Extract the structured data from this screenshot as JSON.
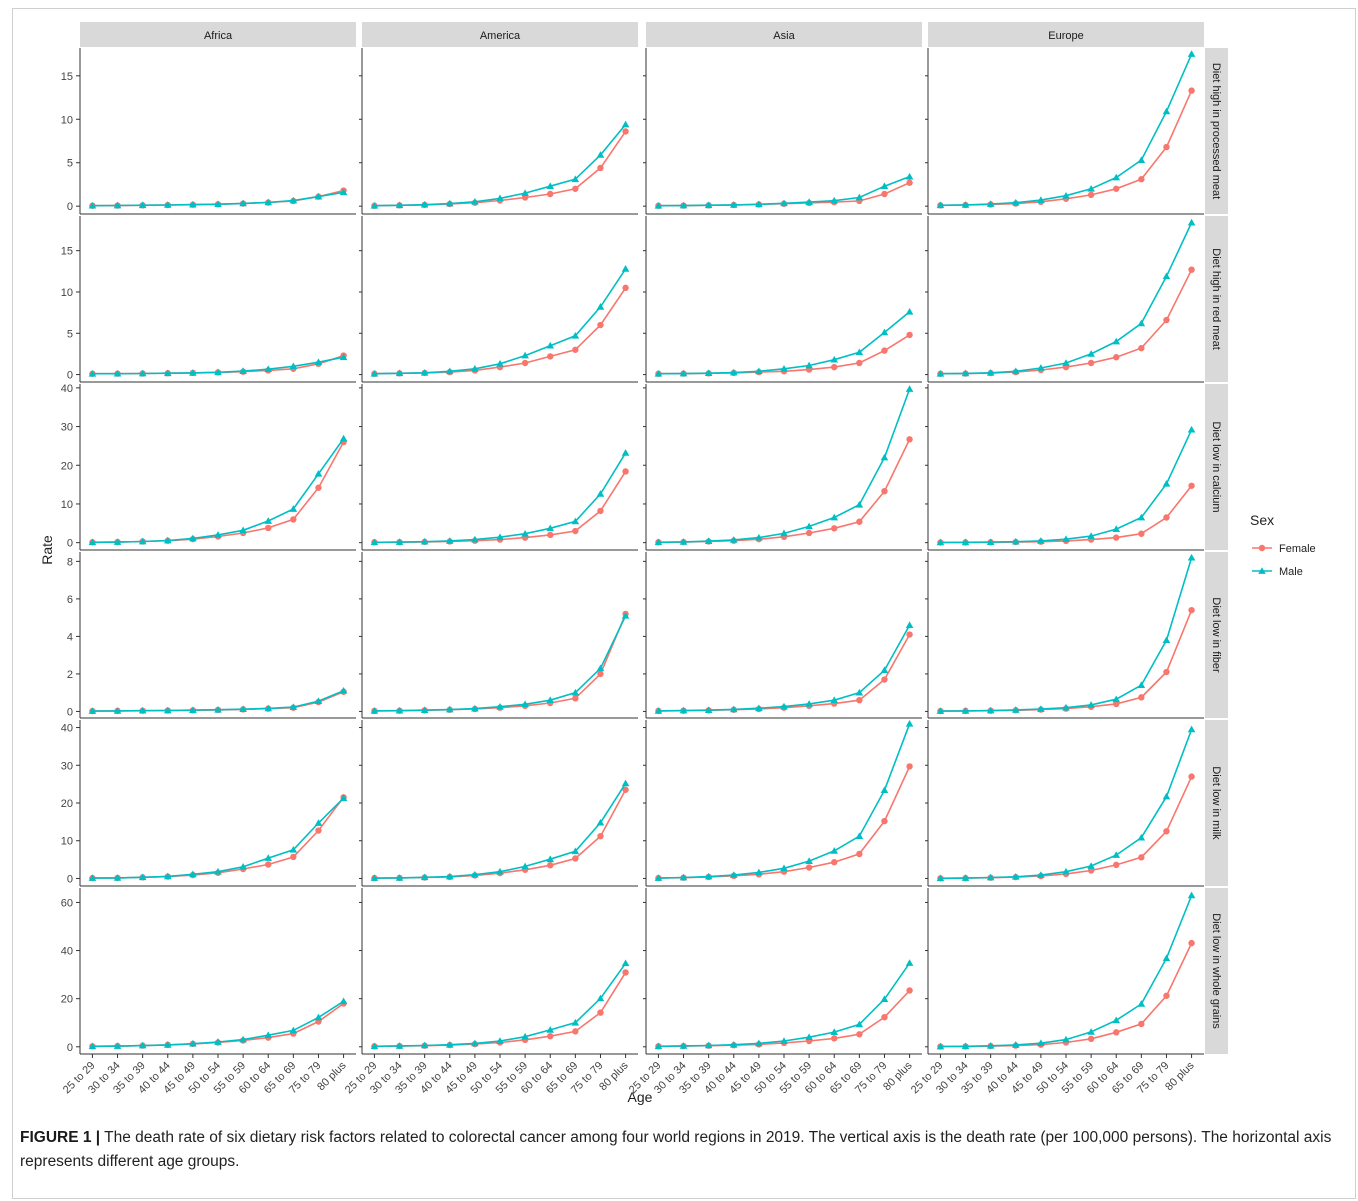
{
  "caption": {
    "label": "FIGURE 1 |",
    "text": " The death rate of six dietary risk factors related to colorectal cancer among four world regions in 2019. The vertical axis is the death rate (per 100,000 persons). The horizontal axis represents different age groups."
  },
  "chart_data": {
    "type": "line",
    "xlabel": "Age",
    "ylabel": "Rate",
    "categories": [
      "25 to 29",
      "30 to 34",
      "35 to 39",
      "40 to 44",
      "45 to 49",
      "50 to 54",
      "55 to 59",
      "60 to 64",
      "65 to 69",
      "75 to 79",
      "80 plus"
    ],
    "legend": {
      "title": "Sex",
      "position": "right",
      "entries": [
        {
          "name": "Female",
          "color": "#F8766D",
          "marker": "circle"
        },
        {
          "name": "Male",
          "color": "#00BFC4",
          "marker": "triangle"
        }
      ]
    },
    "grid": false,
    "columns": [
      "Africa",
      "America",
      "Asia",
      "Europe"
    ],
    "rows": [
      {
        "name": "Diet high in processed meat",
        "ylim": [
          -0.9,
          18.2
        ],
        "yticks": [
          0,
          5,
          10,
          15
        ],
        "panels": {
          "Africa": {
            "Female": [
              0.05,
              0.07,
              0.1,
              0.13,
              0.17,
              0.22,
              0.3,
              0.42,
              0.6,
              1.1,
              1.8
            ],
            "Male": [
              0.06,
              0.08,
              0.11,
              0.14,
              0.18,
              0.23,
              0.32,
              0.44,
              0.65,
              1.1,
              1.6
            ]
          },
          "America": {
            "Female": [
              0.05,
              0.1,
              0.15,
              0.25,
              0.4,
              0.65,
              1.0,
              1.4,
              2.0,
              4.4,
              8.6
            ],
            "Male": [
              0.05,
              0.1,
              0.17,
              0.3,
              0.5,
              0.9,
              1.5,
              2.3,
              3.1,
              5.9,
              9.4
            ]
          },
          "Asia": {
            "Female": [
              0.05,
              0.07,
              0.1,
              0.14,
              0.2,
              0.28,
              0.37,
              0.47,
              0.6,
              1.4,
              2.7
            ],
            "Male": [
              0.05,
              0.07,
              0.11,
              0.15,
              0.22,
              0.33,
              0.47,
              0.63,
              1.0,
              2.3,
              3.4
            ]
          },
          "Europe": {
            "Female": [
              0.1,
              0.13,
              0.2,
              0.3,
              0.5,
              0.85,
              1.3,
              2.0,
              3.1,
              6.8,
              13.3
            ],
            "Male": [
              0.1,
              0.15,
              0.25,
              0.4,
              0.7,
              1.2,
              2.0,
              3.3,
              5.3,
              10.9,
              17.5
            ]
          }
        }
      },
      {
        "name": "Diet high in red meat",
        "ylim": [
          -0.9,
          19.2
        ],
        "yticks": [
          0,
          5,
          10,
          15
        ],
        "panels": {
          "Africa": {
            "Female": [
              0.1,
              0.11,
              0.13,
              0.16,
              0.2,
              0.26,
              0.35,
              0.5,
              0.7,
              1.3,
              2.3
            ],
            "Male": [
              0.1,
              0.11,
              0.13,
              0.16,
              0.2,
              0.28,
              0.42,
              0.65,
              1.0,
              1.5,
              2.1
            ]
          },
          "America": {
            "Female": [
              0.1,
              0.15,
              0.2,
              0.3,
              0.5,
              0.9,
              1.4,
              2.2,
              3.0,
              6.0,
              10.5
            ],
            "Male": [
              0.1,
              0.15,
              0.22,
              0.4,
              0.7,
              1.3,
              2.3,
              3.5,
              4.7,
              8.2,
              12.8
            ]
          },
          "Asia": {
            "Female": [
              0.1,
              0.12,
              0.15,
              0.2,
              0.3,
              0.4,
              0.6,
              0.9,
              1.4,
              2.9,
              4.8
            ],
            "Male": [
              0.1,
              0.12,
              0.17,
              0.25,
              0.4,
              0.7,
              1.1,
              1.8,
              2.7,
              5.1,
              7.6
            ]
          },
          "Europe": {
            "Female": [
              0.1,
              0.12,
              0.18,
              0.3,
              0.55,
              0.9,
              1.4,
              2.1,
              3.2,
              6.6,
              12.7
            ],
            "Male": [
              0.1,
              0.14,
              0.22,
              0.4,
              0.8,
              1.4,
              2.5,
              4.0,
              6.2,
              11.9,
              18.4
            ]
          }
        }
      },
      {
        "name": "Diet low in calcium",
        "ylim": [
          -1.9,
          41.0
        ],
        "yticks": [
          0,
          10,
          20,
          30,
          40
        ],
        "panels": {
          "Africa": {
            "Female": [
              0.1,
              0.15,
              0.3,
              0.5,
              0.9,
              1.6,
              2.5,
              3.8,
              6.0,
              14.2,
              26.0
            ],
            "Male": [
              0.1,
              0.15,
              0.3,
              0.55,
              1.1,
              2.0,
              3.2,
              5.6,
              8.7,
              17.8,
              26.9
            ]
          },
          "America": {
            "Female": [
              0.1,
              0.12,
              0.2,
              0.3,
              0.5,
              0.8,
              1.3,
              2.0,
              3.0,
              8.2,
              18.4
            ],
            "Male": [
              0.1,
              0.15,
              0.25,
              0.45,
              0.8,
              1.4,
              2.3,
              3.7,
              5.5,
              12.6,
              23.2
            ]
          },
          "Asia": {
            "Female": [
              0.1,
              0.15,
              0.3,
              0.5,
              0.9,
              1.5,
              2.5,
              3.7,
              5.4,
              13.3,
              26.7
            ],
            "Male": [
              0.1,
              0.2,
              0.4,
              0.7,
              1.3,
              2.4,
              4.2,
              6.5,
              9.8,
              22.0,
              39.7
            ]
          },
          "Europe": {
            "Female": [
              0.05,
              0.07,
              0.1,
              0.15,
              0.25,
              0.45,
              0.8,
              1.3,
              2.3,
              6.5,
              14.7
            ],
            "Male": [
              0.05,
              0.08,
              0.13,
              0.25,
              0.45,
              0.9,
              1.7,
              3.5,
              6.5,
              15.2,
              29.2
            ]
          }
        }
      },
      {
        "name": "Diet low in fiber",
        "ylim": [
          -0.35,
          8.5
        ],
        "yticks": [
          0,
          2,
          4,
          6,
          8
        ],
        "panels": {
          "Africa": {
            "Female": [
              0.02,
              0.03,
              0.04,
              0.05,
              0.06,
              0.08,
              0.11,
              0.15,
              0.2,
              0.5,
              1.05
            ],
            "Male": [
              0.02,
              0.03,
              0.04,
              0.05,
              0.07,
              0.09,
              0.12,
              0.16,
              0.23,
              0.55,
              1.1
            ]
          },
          "America": {
            "Female": [
              0.03,
              0.04,
              0.06,
              0.09,
              0.13,
              0.2,
              0.3,
              0.45,
              0.7,
              2.0,
              5.2
            ],
            "Male": [
              0.03,
              0.04,
              0.07,
              0.1,
              0.15,
              0.25,
              0.38,
              0.6,
              1.0,
              2.3,
              5.1
            ]
          },
          "Asia": {
            "Female": [
              0.03,
              0.04,
              0.06,
              0.09,
              0.13,
              0.2,
              0.3,
              0.42,
              0.6,
              1.7,
              4.1
            ],
            "Male": [
              0.03,
              0.05,
              0.07,
              0.11,
              0.17,
              0.26,
              0.4,
              0.6,
              1.0,
              2.2,
              4.6
            ]
          },
          "Europe": {
            "Female": [
              0.02,
              0.03,
              0.04,
              0.06,
              0.1,
              0.15,
              0.25,
              0.4,
              0.75,
              2.1,
              5.4
            ],
            "Male": [
              0.02,
              0.03,
              0.05,
              0.08,
              0.13,
              0.2,
              0.35,
              0.65,
              1.4,
              3.8,
              8.2
            ]
          }
        }
      },
      {
        "name": "Diet low in milk",
        "ylim": [
          -2.0,
          42.0
        ],
        "yticks": [
          0,
          10,
          20,
          30,
          40
        ],
        "panels": {
          "Africa": {
            "Female": [
              0.1,
              0.15,
              0.3,
              0.5,
              0.9,
              1.5,
              2.5,
              3.7,
              5.7,
              12.7,
              21.5
            ],
            "Male": [
              0.1,
              0.15,
              0.3,
              0.55,
              1.1,
              1.8,
              3.1,
              5.4,
              7.6,
              14.7,
              21.3
            ]
          },
          "America": {
            "Female": [
              0.1,
              0.15,
              0.25,
              0.4,
              0.8,
              1.4,
              2.3,
              3.5,
              5.3,
              11.2,
              23.5
            ],
            "Male": [
              0.1,
              0.15,
              0.3,
              0.5,
              1.0,
              1.8,
              3.2,
              5.1,
              7.2,
              14.8,
              25.2
            ]
          },
          "Asia": {
            "Female": [
              0.1,
              0.2,
              0.4,
              0.7,
              1.1,
              1.8,
              2.9,
              4.3,
              6.5,
              15.2,
              29.7
            ],
            "Male": [
              0.1,
              0.25,
              0.5,
              0.9,
              1.6,
              2.7,
              4.6,
              7.3,
              11.2,
              23.4,
              41.0
            ]
          },
          "Europe": {
            "Female": [
              0.05,
              0.1,
              0.2,
              0.35,
              0.65,
              1.2,
              2.1,
              3.6,
              5.6,
              12.5,
              27.0
            ],
            "Male": [
              0.05,
              0.1,
              0.25,
              0.45,
              0.9,
              1.8,
              3.3,
              6.2,
              10.8,
              21.7,
              39.5
            ]
          }
        }
      },
      {
        "name": "Diet low in whole grains",
        "ylim": [
          -3.0,
          66.0
        ],
        "yticks": [
          0,
          20,
          40,
          60
        ],
        "panels": {
          "Africa": {
            "Female": [
              0.2,
              0.3,
              0.5,
              0.8,
              1.2,
              1.8,
              2.6,
              3.8,
              5.5,
              10.5,
              18.0
            ],
            "Male": [
              0.2,
              0.3,
              0.5,
              0.8,
              1.3,
              2.0,
              3.0,
              4.8,
              6.8,
              12.2,
              18.9
            ]
          },
          "America": {
            "Female": [
              0.2,
              0.3,
              0.45,
              0.7,
              1.1,
              1.8,
              2.9,
              4.4,
              6.4,
              14.2,
              30.9
            ],
            "Male": [
              0.2,
              0.35,
              0.55,
              0.85,
              1.4,
              2.4,
              4.2,
              7.0,
              10.0,
              20.1,
              34.7
            ]
          },
          "Asia": {
            "Female": [
              0.2,
              0.3,
              0.45,
              0.65,
              1.0,
              1.6,
              2.4,
              3.5,
              5.2,
              12.3,
              23.4
            ],
            "Male": [
              0.2,
              0.35,
              0.55,
              0.85,
              1.4,
              2.4,
              4.0,
              6.1,
              9.3,
              19.8,
              34.8
            ]
          },
          "Europe": {
            "Female": [
              0.1,
              0.15,
              0.3,
              0.5,
              0.9,
              1.8,
              3.3,
              6.0,
              9.5,
              21.2,
              43.1
            ],
            "Male": [
              0.1,
              0.2,
              0.4,
              0.8,
              1.5,
              3.0,
              6.2,
              11.0,
              17.8,
              36.8,
              62.9
            ]
          }
        }
      }
    ]
  }
}
